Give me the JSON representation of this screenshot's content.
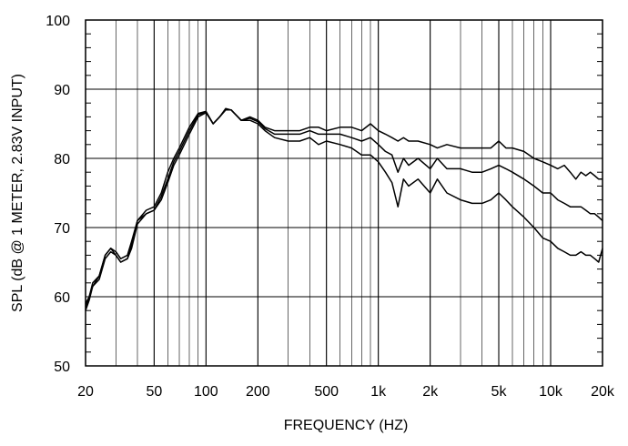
{
  "chart_data": {
    "type": "line",
    "title": "",
    "xlabel": "FREQUENCY  (HZ)",
    "ylabel": "SPL (dB @ 1 METER, 2.83V INPUT)",
    "x_scale": "log",
    "xlim": [
      20,
      20000
    ],
    "ylim": [
      50,
      100
    ],
    "grid": true,
    "legend": "none",
    "line_color": "#000000",
    "x_ticks": [
      {
        "value": 20,
        "label": "20"
      },
      {
        "value": 50,
        "label": "50"
      },
      {
        "value": 100,
        "label": "100"
      },
      {
        "value": 200,
        "label": "200"
      },
      {
        "value": 500,
        "label": "500"
      },
      {
        "value": 1000,
        "label": "1k"
      },
      {
        "value": 2000,
        "label": "2k"
      },
      {
        "value": 5000,
        "label": "5k"
      },
      {
        "value": 10000,
        "label": "10k"
      },
      {
        "value": 20000,
        "label": "20k"
      }
    ],
    "y_ticks": [
      {
        "value": 50,
        "label": "50"
      },
      {
        "value": 60,
        "label": "60"
      },
      {
        "value": 70,
        "label": "70"
      },
      {
        "value": 80,
        "label": "80"
      },
      {
        "value": 90,
        "label": "90"
      },
      {
        "value": 100,
        "label": "100"
      }
    ],
    "series": [
      {
        "points": [
          [
            20,
            59
          ],
          [
            21,
            60
          ],
          [
            22,
            62
          ],
          [
            24,
            63
          ],
          [
            26,
            66
          ],
          [
            28,
            67
          ],
          [
            30,
            66.5
          ],
          [
            32,
            65.5
          ],
          [
            35,
            66
          ],
          [
            37,
            68
          ],
          [
            40,
            71
          ],
          [
            45,
            72.5
          ],
          [
            50,
            73
          ],
          [
            55,
            75
          ],
          [
            60,
            78
          ],
          [
            65,
            80
          ],
          [
            70,
            81.5
          ],
          [
            80,
            84.5
          ],
          [
            90,
            86.5
          ],
          [
            100,
            86.8
          ],
          [
            110,
            85
          ],
          [
            120,
            86
          ],
          [
            130,
            87.2
          ],
          [
            140,
            87
          ],
          [
            160,
            85.5
          ],
          [
            180,
            86
          ],
          [
            200,
            85.5
          ],
          [
            220,
            84.5
          ],
          [
            250,
            84
          ],
          [
            300,
            84
          ],
          [
            350,
            84
          ],
          [
            400,
            84.5
          ],
          [
            450,
            84.5
          ],
          [
            500,
            84
          ],
          [
            600,
            84.5
          ],
          [
            700,
            84.5
          ],
          [
            800,
            84
          ],
          [
            900,
            85
          ],
          [
            1000,
            84
          ],
          [
            1100,
            83.5
          ],
          [
            1200,
            83
          ],
          [
            1300,
            82.5
          ],
          [
            1400,
            83
          ],
          [
            1500,
            82.5
          ],
          [
            1700,
            82.5
          ],
          [
            2000,
            82
          ],
          [
            2200,
            81.5
          ],
          [
            2500,
            82
          ],
          [
            3000,
            81.5
          ],
          [
            3500,
            81.5
          ],
          [
            4000,
            81.5
          ],
          [
            4500,
            81.5
          ],
          [
            5000,
            82.5
          ],
          [
            5500,
            81.5
          ],
          [
            6000,
            81.5
          ],
          [
            7000,
            81
          ],
          [
            8000,
            80
          ],
          [
            9000,
            79.5
          ],
          [
            10000,
            79
          ],
          [
            11000,
            78.5
          ],
          [
            12000,
            79
          ],
          [
            13000,
            78
          ],
          [
            14000,
            77
          ],
          [
            15000,
            78
          ],
          [
            16000,
            77.5
          ],
          [
            17000,
            78
          ],
          [
            18000,
            77.5
          ],
          [
            19000,
            77
          ],
          [
            20000,
            77
          ]
        ]
      },
      {
        "points": [
          [
            20,
            58.5
          ],
          [
            21,
            60
          ],
          [
            22,
            61.5
          ],
          [
            24,
            63
          ],
          [
            26,
            66
          ],
          [
            28,
            67
          ],
          [
            30,
            66
          ],
          [
            32,
            65
          ],
          [
            35,
            65.5
          ],
          [
            37,
            67.5
          ],
          [
            40,
            71
          ],
          [
            45,
            72
          ],
          [
            50,
            72.5
          ],
          [
            55,
            74.5
          ],
          [
            60,
            77
          ],
          [
            65,
            79.5
          ],
          [
            70,
            81
          ],
          [
            80,
            84
          ],
          [
            90,
            86.3
          ],
          [
            100,
            86.7
          ],
          [
            110,
            85
          ],
          [
            120,
            86
          ],
          [
            130,
            87
          ],
          [
            140,
            87
          ],
          [
            160,
            85.5
          ],
          [
            180,
            85.8
          ],
          [
            200,
            85.3
          ],
          [
            220,
            84.3
          ],
          [
            250,
            83.5
          ],
          [
            300,
            83.5
          ],
          [
            350,
            83.5
          ],
          [
            400,
            84
          ],
          [
            450,
            83.5
          ],
          [
            500,
            83.5
          ],
          [
            600,
            83.5
          ],
          [
            700,
            83
          ],
          [
            800,
            82.5
          ],
          [
            900,
            83
          ],
          [
            1000,
            82
          ],
          [
            1100,
            81
          ],
          [
            1200,
            80.5
          ],
          [
            1300,
            78
          ],
          [
            1400,
            80
          ],
          [
            1500,
            79
          ],
          [
            1700,
            80
          ],
          [
            2000,
            78.5
          ],
          [
            2200,
            80
          ],
          [
            2500,
            78.5
          ],
          [
            3000,
            78.5
          ],
          [
            3500,
            78
          ],
          [
            4000,
            78
          ],
          [
            4500,
            78.5
          ],
          [
            5000,
            79
          ],
          [
            5500,
            78.5
          ],
          [
            6000,
            78
          ],
          [
            7000,
            77
          ],
          [
            8000,
            76
          ],
          [
            9000,
            75
          ],
          [
            10000,
            75
          ],
          [
            11000,
            74
          ],
          [
            12000,
            73.5
          ],
          [
            13000,
            73
          ],
          [
            14000,
            73
          ],
          [
            15000,
            73
          ],
          [
            16000,
            72.5
          ],
          [
            17000,
            72
          ],
          [
            18000,
            72
          ],
          [
            19000,
            71.5
          ],
          [
            20000,
            71
          ]
        ]
      },
      {
        "points": [
          [
            20,
            58
          ],
          [
            21,
            59.5
          ],
          [
            22,
            61.5
          ],
          [
            24,
            62.5
          ],
          [
            26,
            65.5
          ],
          [
            28,
            66.5
          ],
          [
            30,
            66
          ],
          [
            32,
            65
          ],
          [
            35,
            65.5
          ],
          [
            37,
            67
          ],
          [
            40,
            70.5
          ],
          [
            45,
            72
          ],
          [
            50,
            72.5
          ],
          [
            55,
            74
          ],
          [
            60,
            76.5
          ],
          [
            65,
            79
          ],
          [
            70,
            80.5
          ],
          [
            80,
            83.5
          ],
          [
            90,
            86
          ],
          [
            100,
            86.6
          ],
          [
            110,
            85
          ],
          [
            120,
            86
          ],
          [
            130,
            87
          ],
          [
            140,
            87
          ],
          [
            160,
            85.5
          ],
          [
            180,
            85.5
          ],
          [
            200,
            85
          ],
          [
            220,
            84
          ],
          [
            250,
            83
          ],
          [
            300,
            82.5
          ],
          [
            350,
            82.5
          ],
          [
            400,
            83
          ],
          [
            450,
            82
          ],
          [
            500,
            82.5
          ],
          [
            600,
            82
          ],
          [
            700,
            81.5
          ],
          [
            800,
            80.5
          ],
          [
            900,
            80.5
          ],
          [
            1000,
            79.5
          ],
          [
            1100,
            78
          ],
          [
            1200,
            76.5
          ],
          [
            1300,
            73
          ],
          [
            1400,
            77
          ],
          [
            1500,
            76
          ],
          [
            1700,
            77
          ],
          [
            2000,
            75
          ],
          [
            2200,
            77
          ],
          [
            2500,
            75
          ],
          [
            3000,
            74
          ],
          [
            3500,
            73.5
          ],
          [
            4000,
            73.5
          ],
          [
            4500,
            74
          ],
          [
            5000,
            75
          ],
          [
            5500,
            74
          ],
          [
            6000,
            73
          ],
          [
            7000,
            71.5
          ],
          [
            8000,
            70
          ],
          [
            9000,
            68.5
          ],
          [
            10000,
            68
          ],
          [
            11000,
            67
          ],
          [
            12000,
            66.5
          ],
          [
            13000,
            66
          ],
          [
            14000,
            66
          ],
          [
            15000,
            66.5
          ],
          [
            16000,
            66
          ],
          [
            17000,
            66
          ],
          [
            18000,
            65.5
          ],
          [
            19000,
            65
          ],
          [
            20000,
            67
          ]
        ]
      }
    ]
  }
}
